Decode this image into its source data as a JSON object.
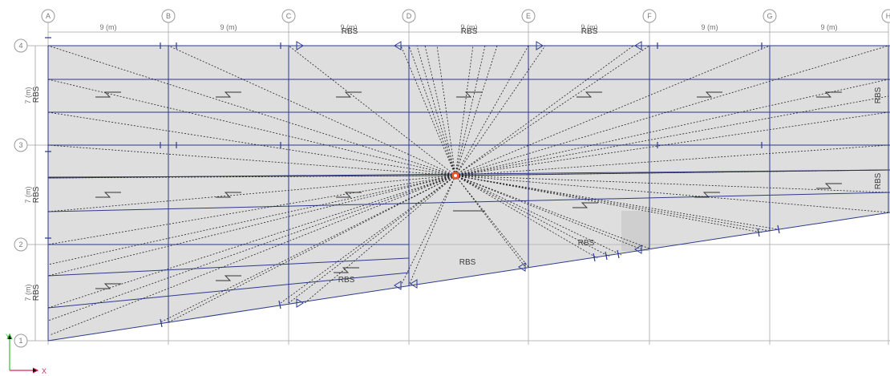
{
  "grid": {
    "x_labels": [
      "A",
      "B",
      "C",
      "D",
      "E",
      "F",
      "G",
      "H"
    ],
    "y_labels": [
      "4",
      "3",
      "2",
      "1"
    ]
  },
  "dimensions": {
    "x": [
      "9 (m)",
      "9 (m)",
      "9 (m)",
      "9 (m)",
      "9 (m)",
      "9 (m)",
      "9 (m)"
    ],
    "y": [
      "7 (m)",
      "7 (m)",
      "7 (m)"
    ]
  },
  "rbs_label": "RBS",
  "axes": {
    "x_label": "X",
    "y_label": "Y"
  },
  "colors": {
    "slab_fill": "#dedede",
    "beam": "#2b3a8c",
    "grid": "#b9b9b9",
    "load_point": "#e8552a",
    "axis_x": "#e0245e",
    "axis_y": "#35c235"
  },
  "icons": {
    "load_point": "point-load-marker",
    "deck_direction": "deck-span-direction-icon",
    "beam_end": "rbs-triangle-icon"
  }
}
